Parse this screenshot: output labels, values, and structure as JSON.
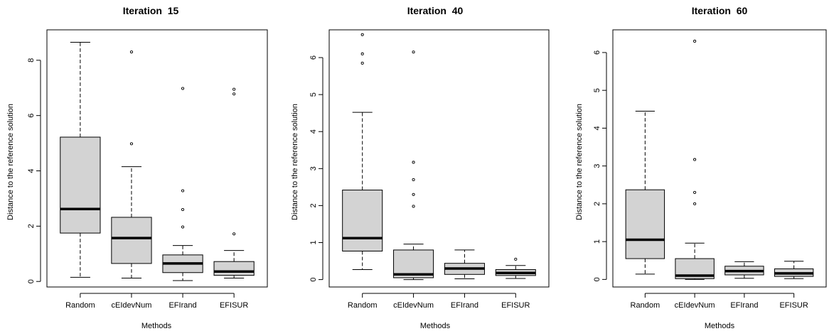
{
  "figure": {
    "panels": [
      {
        "title": "Iteration  15",
        "xlabel": "Methods",
        "ylabel": "Distance to the reference solution"
      },
      {
        "title": "Iteration  40",
        "xlabel": "Methods",
        "ylabel": "Distance to the reference solution"
      },
      {
        "title": "Iteration  60",
        "xlabel": "Methods",
        "ylabel": "Distance to the reference solution"
      }
    ]
  },
  "chart_data": [
    {
      "type": "box",
      "title": "Iteration  15",
      "xlabel": "Methods",
      "ylabel": "Distance to the reference solution",
      "categories": [
        "Random",
        "cEIdevNum",
        "EFIrand",
        "EFISUR"
      ],
      "ylim": [
        -0.2,
        9.1
      ],
      "yticks": [
        0,
        2,
        4,
        6,
        8
      ],
      "box_fill": "#d3d3d3",
      "boxes": [
        {
          "whisker_low": 0.15,
          "q1": 1.75,
          "median": 2.62,
          "q3": 5.22,
          "whisker_high": 8.65,
          "outliers": []
        },
        {
          "whisker_low": 0.12,
          "q1": 0.65,
          "median": 1.57,
          "q3": 2.32,
          "whisker_high": 4.15,
          "outliers": [
            4.98,
            8.3
          ]
        },
        {
          "whisker_low": 0.03,
          "q1": 0.32,
          "median": 0.65,
          "q3": 0.96,
          "whisker_high": 1.3,
          "outliers": [
            1.97,
            2.6,
            3.28,
            6.98
          ]
        },
        {
          "whisker_low": 0.12,
          "q1": 0.22,
          "median": 0.36,
          "q3": 0.72,
          "whisker_high": 1.12,
          "outliers": [
            1.72,
            6.78,
            6.95
          ]
        }
      ]
    },
    {
      "type": "box",
      "title": "Iteration  40",
      "xlabel": "Methods",
      "ylabel": "Distance to the reference solution",
      "categories": [
        "Random",
        "cEIdevNum",
        "EFIrand",
        "EFISUR"
      ],
      "ylim": [
        -0.2,
        6.75
      ],
      "yticks": [
        0,
        1,
        2,
        3,
        4,
        5,
        6
      ],
      "box_fill": "#d3d3d3",
      "boxes": [
        {
          "whisker_low": 0.27,
          "q1": 0.77,
          "median": 1.12,
          "q3": 2.42,
          "whisker_high": 4.52,
          "outliers": [
            5.85,
            6.1,
            6.62
          ]
        },
        {
          "whisker_low": 0.0,
          "q1": 0.05,
          "median": 0.14,
          "q3": 0.8,
          "whisker_high": 0.96,
          "outliers": [
            1.98,
            2.3,
            2.7,
            3.17,
            6.15
          ]
        },
        {
          "whisker_low": 0.02,
          "q1": 0.14,
          "median": 0.3,
          "q3": 0.44,
          "whisker_high": 0.8,
          "outliers": []
        },
        {
          "whisker_low": 0.03,
          "q1": 0.11,
          "median": 0.18,
          "q3": 0.27,
          "whisker_high": 0.38,
          "outliers": [
            0.55
          ]
        }
      ]
    },
    {
      "type": "box",
      "title": "Iteration  60",
      "xlabel": "Methods",
      "ylabel": "Distance to the reference solution",
      "categories": [
        "Random",
        "cEIdevNum",
        "EFIrand",
        "EFISUR"
      ],
      "ylim": [
        -0.2,
        6.6
      ],
      "yticks": [
        0,
        1,
        2,
        3,
        4,
        5,
        6
      ],
      "box_fill": "#d3d3d3",
      "boxes": [
        {
          "whisker_low": 0.14,
          "q1": 0.55,
          "median": 1.05,
          "q3": 2.37,
          "whisker_high": 4.45,
          "outliers": []
        },
        {
          "whisker_low": 0.0,
          "q1": 0.02,
          "median": 0.1,
          "q3": 0.55,
          "whisker_high": 0.96,
          "outliers": [
            2.0,
            2.3,
            3.17,
            6.3
          ]
        },
        {
          "whisker_low": 0.03,
          "q1": 0.12,
          "median": 0.22,
          "q3": 0.35,
          "whisker_high": 0.47,
          "outliers": []
        },
        {
          "whisker_low": 0.02,
          "q1": 0.08,
          "median": 0.16,
          "q3": 0.28,
          "whisker_high": 0.48,
          "outliers": []
        }
      ]
    }
  ]
}
